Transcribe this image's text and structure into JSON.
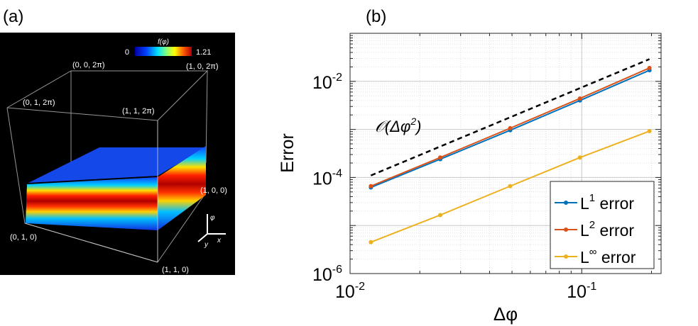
{
  "panel_a": {
    "label": "(a)",
    "colorbar": {
      "title": "f(φ)",
      "min_label": "0",
      "max_label": "1.21"
    },
    "corner_labels": {
      "c002pi": "(0, 0, 2π)",
      "c102pi": "(1, 0, 2π)",
      "c012pi": "(0, 1, 2π)",
      "c112pi": "(1, 1, 2π)",
      "c100": "(1, 0, 0)",
      "c010": "(0, 1, 0)",
      "c110": "(1, 1, 0)"
    },
    "axes_triad": {
      "up": "φ",
      "right": "x",
      "diag": "y"
    }
  },
  "chart_data": {
    "type": "line",
    "panel_label": "(b)",
    "xscale": "log",
    "yscale": "log",
    "xlim": [
      0.01,
      0.22
    ],
    "ylim": [
      1e-06,
      0.1
    ],
    "xlabel": "Δφ",
    "ylabel": "Error",
    "xtick_labels": [
      {
        "value": 0.01,
        "base": "10",
        "exp": "-2"
      },
      {
        "value": 0.1,
        "base": "10",
        "exp": "-1"
      }
    ],
    "ytick_labels": [
      {
        "value": 0.01,
        "base": "10",
        "exp": "-2"
      },
      {
        "value": 0.0001,
        "base": "10",
        "exp": "-4"
      },
      {
        "value": 1e-06,
        "base": "10",
        "exp": "-6"
      }
    ],
    "grid": true,
    "legend_position": "bottom-right",
    "x": [
      0.0123,
      0.0245,
      0.0491,
      0.0982,
      0.196
    ],
    "series": [
      {
        "name": "L1 error",
        "label_base": "L",
        "label_sup": "1",
        "label_rest": " error",
        "color": "#0072BD",
        "values": [
          6.2e-05,
          0.00024,
          0.00096,
          0.004,
          0.017
        ]
      },
      {
        "name": "L2 error",
        "label_base": "L",
        "label_sup": "2",
        "label_rest": " error",
        "color": "#D95319",
        "values": [
          6.6e-05,
          0.00026,
          0.00106,
          0.0044,
          0.019
        ]
      },
      {
        "name": "L∞ error",
        "label_base": "L",
        "label_sup": "∞",
        "label_rest": " error",
        "color": "#EDB120",
        "values": [
          4.5e-06,
          1.65e-05,
          6.6e-05,
          0.00026,
          0.00092
        ]
      }
    ],
    "reference": {
      "label_prefix": "𝒪(Δφ",
      "label_sup": "2",
      "label_suffix": ")",
      "color": "#000000",
      "x": [
        0.0123,
        0.196
      ],
      "values": [
        0.00011,
        0.029
      ]
    }
  }
}
